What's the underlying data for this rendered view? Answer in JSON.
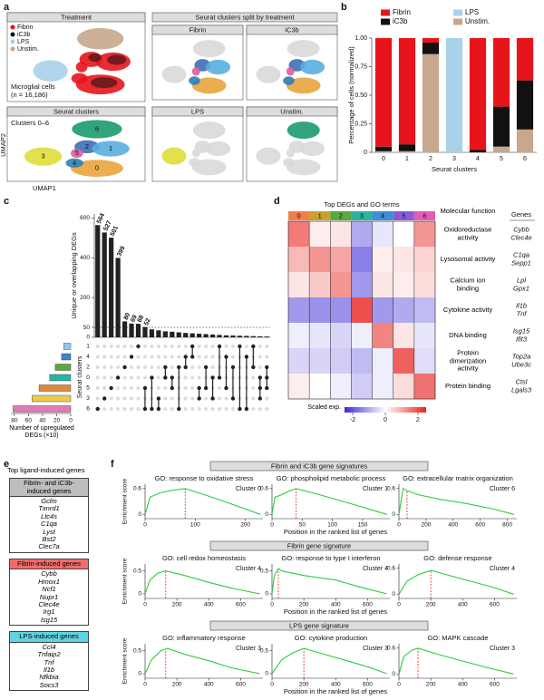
{
  "figure": {
    "a": {
      "label": "a",
      "treatment": "Treatment",
      "cells": "Microglial cells",
      "n": "(n = 16,186)",
      "clusters": "Seurat clusters",
      "clusters_range": "Clusters 0–6",
      "cluster_tags": [
        "0",
        "1",
        "2",
        "3",
        "4",
        "5",
        "6"
      ],
      "split": "Seurat clusters split by treatment",
      "split_panels": [
        "Fibrin",
        "iC3b",
        "LPS",
        "Unstim."
      ],
      "x_label": "UMAP1",
      "y_label": "UMAP2"
    },
    "b": {
      "label": "b"
    },
    "c": {
      "label": "c"
    },
    "d": {
      "label": "d",
      "molecular_function": "Molecular function",
      "genes_header": "Genes",
      "functions": [
        "Oxidoreductase activity",
        "Lysosomal activity",
        "Calcium ion binding",
        "Cytokine activity",
        "DNA binding",
        "Protein dimerization activity",
        "Protein binding"
      ],
      "genes": [
        [
          "Cybb",
          "Clec4e"
        ],
        [
          "C1qa",
          "Sepp1"
        ],
        [
          "Lpl",
          "Gpx1"
        ],
        [
          "Il1b",
          "Tnf"
        ],
        [
          "Isg15",
          "Ifit3"
        ],
        [
          "Top2a",
          "Ube3c"
        ],
        [
          "Ctsl",
          "Lgals3"
        ]
      ]
    },
    "e": {
      "label": "e",
      "title": "Top ligand-induced genes",
      "groups": [
        {
          "title": "Fibrin- and iC3b-induced genes",
          "color": "#bdbdbd",
          "genes": [
            "Gclm",
            "Txnrd1",
            "Ltc4s",
            "C1qa",
            "Lyst",
            "Bst2",
            "Clec7a"
          ]
        },
        {
          "title": "Fibrin-induced genes",
          "color": "#f26b6b",
          "genes": [
            "Cybb",
            "Hmox1",
            "Ncf1",
            "Nupr1",
            "Clec4e",
            "Irg1",
            "Isg15"
          ]
        },
        {
          "title": "LPS-induced genes",
          "color": "#5fd4e2",
          "genes": [
            "Ccl4",
            "Tnfaip2",
            "Tnf",
            "Il1b",
            "Nfkbia",
            "Socs3"
          ]
        }
      ]
    },
    "f": {
      "label": "f",
      "sections": [
        "Fibrin and iC3b gene signatures",
        "Fibrin gene signature",
        "LPS gene signature"
      ],
      "y_label": "Enrichment score",
      "x_label": "Position in the ranked list of genes"
    }
  },
  "chart_data": [
    {
      "type": "bar",
      "stacked": true,
      "ylabel": "Percentage of cells (normalized)",
      "xlabel": "Seurat clusters",
      "categories": [
        "0",
        "1",
        "2",
        "3",
        "4",
        "5",
        "6"
      ],
      "series": [
        {
          "name": "Fibrin",
          "color": "#e8141c",
          "values": [
            0.95,
            0.93,
            0.04,
            0,
            0.98,
            0.6,
            0.37
          ]
        },
        {
          "name": "iC3b",
          "color": "#111111",
          "values": [
            0.04,
            0.06,
            0.1,
            0,
            0.02,
            0.35,
            0.43
          ]
        },
        {
          "name": "LPS",
          "color": "#a9d2ea",
          "values": [
            0,
            0,
            0,
            1,
            0,
            0,
            0
          ]
        },
        {
          "name": "Unstim.",
          "color": "#c7a78d",
          "values": [
            0.01,
            0.01,
            0.86,
            0,
            0,
            0.05,
            0.2
          ]
        }
      ],
      "ylim": [
        0,
        1
      ],
      "yticks": [
        0,
        0.25,
        {
          "value": 0.5,
          "label": "0.50"
        },
        0.75,
        {
          "value": 1,
          "label": "1.00"
        }
      ],
      "legend": "top"
    },
    {
      "type": "upset",
      "ylabel": "Unique or overlapping DEGs",
      "color": "#222222",
      "values": [
        564,
        527,
        501,
        399,
        80,
        69,
        68,
        52,
        40,
        35,
        30,
        28,
        25,
        22,
        20,
        18,
        16,
        14,
        12,
        10,
        9,
        8,
        7,
        6,
        5,
        4
      ],
      "value_labels": [
        "564",
        "527",
        "501",
        "399",
        "80",
        "69",
        "68",
        "52",
        null,
        null,
        null,
        null,
        null,
        null,
        null,
        null,
        null,
        null,
        null,
        null,
        null,
        null,
        null,
        null,
        null,
        null
      ],
      "sets": [
        [
          6
        ],
        [
          5
        ],
        [
          4
        ],
        [
          3
        ],
        [
          2
        ],
        [
          1
        ],
        [
          0
        ],
        [
          4,
          6
        ],
        [
          3,
          6
        ],
        [
          5,
          6
        ],
        [
          2,
          3
        ],
        [
          3,
          4
        ],
        [
          2,
          6
        ],
        [
          1,
          2
        ],
        [
          0,
          1
        ],
        [
          4,
          5
        ],
        [
          2,
          4
        ],
        [
          3,
          5
        ],
        [
          0,
          3
        ],
        [
          1,
          4
        ],
        [
          2,
          5
        ],
        [
          0,
          6
        ],
        [
          1,
          6
        ],
        [
          0,
          2
        ],
        [
          3,
          4,
          5
        ],
        [
          2,
          3,
          4
        ]
      ],
      "ylim": [
        0,
        620
      ],
      "yticks": [
        0,
        50,
        200,
        400,
        600
      ],
      "reference_line": 50
    },
    {
      "type": "hbar",
      "ylabel": "Seurat clusters",
      "xlabel": "Number of upregulated DEGs (×10)",
      "categories": [
        "1",
        "4",
        "2",
        "0",
        "5",
        "3",
        "6"
      ],
      "values": [
        10,
        13,
        22,
        30,
        45,
        55,
        82
      ],
      "colors": [
        "#8ecae6",
        "#3a86c8",
        "#5aa83f",
        "#2ab3a1",
        "#e0873a",
        "#e6cc4a",
        "#e07ab8"
      ],
      "xlim": [
        0,
        85
      ],
      "xticks": [
        0,
        20,
        40,
        60,
        80
      ],
      "x_reversed": true
    },
    {
      "type": "heatmap",
      "title": "Top DEGs and GO terms",
      "columns": [
        "0",
        "1",
        "2",
        "3",
        "4",
        "5",
        "6"
      ],
      "column_colors": [
        "#f07f4a",
        "#c9a12b",
        "#5aa83f",
        "#2ab3a1",
        "#3d8fd6",
        "#8b5bd6",
        "#e25bb5"
      ],
      "values": [
        [
          1.5,
          0.2,
          0.3,
          -1,
          -0.3,
          0,
          1.2
        ],
        [
          0.8,
          1.2,
          1,
          -1.5,
          0.2,
          0.3,
          0.5
        ],
        [
          0.3,
          0.6,
          1.2,
          -1.2,
          0.3,
          0.2,
          0.4
        ],
        [
          -1.2,
          -1.3,
          -1.3,
          2,
          -1.2,
          -1,
          -0.8
        ],
        [
          -0.2,
          -0.3,
          -0.5,
          -0.2,
          1.4,
          0.3,
          -0.3
        ],
        [
          -0.5,
          -0.5,
          -0.6,
          -0.8,
          -0.2,
          1.8,
          -0.4
        ],
        [
          0.2,
          0,
          -0.2,
          -0.6,
          -0.2,
          0.4,
          1.6
        ]
      ],
      "colorbar_label": "Scaled exp.",
      "clim": [
        -2.5,
        2.5
      ],
      "cticks": [
        -2,
        0,
        2
      ],
      "colors": [
        "#3b2bd6",
        "#ffffff",
        "#e8231f"
      ]
    },
    {
      "type": "line",
      "title": "GO: response to oxidative stress",
      "annotation": "Cluster 0",
      "color": "#2ecc40",
      "x": [
        0,
        10,
        30,
        50,
        80,
        120,
        170,
        230
      ],
      "values": [
        0,
        0.4,
        0.5,
        0.55,
        0.6,
        0.45,
        0.25,
        0
      ],
      "peak": 80,
      "xlim": [
        0,
        235
      ],
      "xticks": [
        0,
        100,
        200
      ],
      "ylim": [
        -0.1,
        0.7
      ],
      "yticks": [
        0,
        0.6
      ]
    },
    {
      "type": "line",
      "title": "GO: phospholipid metabolic process",
      "annotation": "Cluster 1",
      "color": "#2ecc40",
      "x": [
        0,
        5,
        15,
        30,
        40,
        80,
        130,
        190
      ],
      "values": [
        0,
        0.4,
        0.45,
        0.55,
        0.6,
        0.45,
        0.25,
        0
      ],
      "peak": 40,
      "xlim": [
        0,
        195
      ],
      "xticks": [
        0,
        50,
        100,
        150
      ],
      "ylim": [
        -0.1,
        0.7
      ],
      "yticks": [
        0,
        0.6
      ]
    },
    {
      "type": "line",
      "title": "GO: extracellular matrix organization",
      "annotation": "Cluster 6",
      "color": "#2ecc40",
      "x": [
        0,
        30,
        60,
        150,
        300,
        500,
        700,
        850
      ],
      "values": [
        0,
        0.6,
        0.55,
        0.45,
        0.35,
        0.25,
        0.12,
        0
      ],
      "peak": 60,
      "xlim": [
        0,
        870
      ],
      "xticks": [
        0,
        200,
        400,
        600,
        800
      ],
      "ylim": [
        -0.1,
        0.7
      ],
      "yticks": [
        0,
        0.6
      ]
    },
    {
      "type": "line",
      "title": "GO: cell redox homeostasis",
      "annotation": "Cluster 4",
      "color": "#2ecc40",
      "x": [
        0,
        30,
        80,
        130,
        250,
        400,
        550,
        720
      ],
      "values": [
        0,
        0.3,
        0.45,
        0.5,
        0.4,
        0.25,
        0.12,
        0
      ],
      "peak": 130,
      "xlim": [
        0,
        740
      ],
      "xticks": [
        0,
        200,
        400,
        600
      ],
      "ylim": [
        -0.1,
        0.65
      ],
      "yticks": [
        0,
        0.5
      ]
    },
    {
      "type": "line",
      "title": "GO: response to type I interferon",
      "annotation": "Cluster 4",
      "color": "#2ecc40",
      "x": [
        0,
        15,
        40,
        60,
        200,
        400,
        550,
        720
      ],
      "values": [
        0,
        0.4,
        0.55,
        0.5,
        0.4,
        0.3,
        0.15,
        0
      ],
      "peak": 40,
      "xlim": [
        0,
        740
      ],
      "xticks": [
        0,
        200,
        400,
        600
      ],
      "ylim": [
        -0.1,
        0.65
      ],
      "yticks": [
        0,
        0.5
      ]
    },
    {
      "type": "line",
      "title": "GO: defense response",
      "annotation": "Cluster 4",
      "color": "#2ecc40",
      "x": [
        0,
        50,
        120,
        200,
        300,
        450,
        600,
        720
      ],
      "values": [
        0,
        0.3,
        0.45,
        0.55,
        0.45,
        0.3,
        0.15,
        0
      ],
      "peak": 200,
      "xlim": [
        0,
        740
      ],
      "xticks": [
        0,
        200,
        400,
        600
      ],
      "ylim": [
        -0.1,
        0.7
      ],
      "yticks": [
        0,
        0.6
      ]
    },
    {
      "type": "line",
      "title": "GO: inflammatory response",
      "annotation": "Cluster 3",
      "color": "#2ecc40",
      "x": [
        0,
        40,
        100,
        140,
        250,
        400,
        550,
        720
      ],
      "values": [
        0,
        0.3,
        0.5,
        0.55,
        0.42,
        0.28,
        0.12,
        0
      ],
      "peak": 130,
      "xlim": [
        0,
        740
      ],
      "xticks": [
        0,
        200,
        400,
        600
      ],
      "ylim": [
        -0.1,
        0.65
      ],
      "yticks": [
        0,
        0.5
      ]
    },
    {
      "type": "line",
      "title": "GO: cytokine production",
      "annotation": "Cluster 3",
      "color": "#2ecc40",
      "x": [
        0,
        60,
        130,
        200,
        300,
        450,
        600,
        720
      ],
      "values": [
        0,
        0.3,
        0.45,
        0.55,
        0.45,
        0.3,
        0.15,
        0
      ],
      "peak": 200,
      "xlim": [
        0,
        740
      ],
      "xticks": [
        0,
        200,
        400,
        600
      ],
      "ylim": [
        -0.1,
        0.65
      ],
      "yticks": [
        0,
        0.5
      ]
    },
    {
      "type": "line",
      "title": "GO: MAPK cascade",
      "annotation": "Cluster 3",
      "color": "#2ecc40",
      "x": [
        0,
        30,
        80,
        120,
        250,
        400,
        550,
        720
      ],
      "values": [
        0,
        0.4,
        0.55,
        0.6,
        0.45,
        0.3,
        0.15,
        0
      ],
      "peak": 120,
      "xlim": [
        0,
        740
      ],
      "xticks": [
        0,
        200,
        400,
        600
      ],
      "ylim": [
        -0.1,
        0.7
      ],
      "yticks": [
        0,
        0.6
      ]
    }
  ]
}
